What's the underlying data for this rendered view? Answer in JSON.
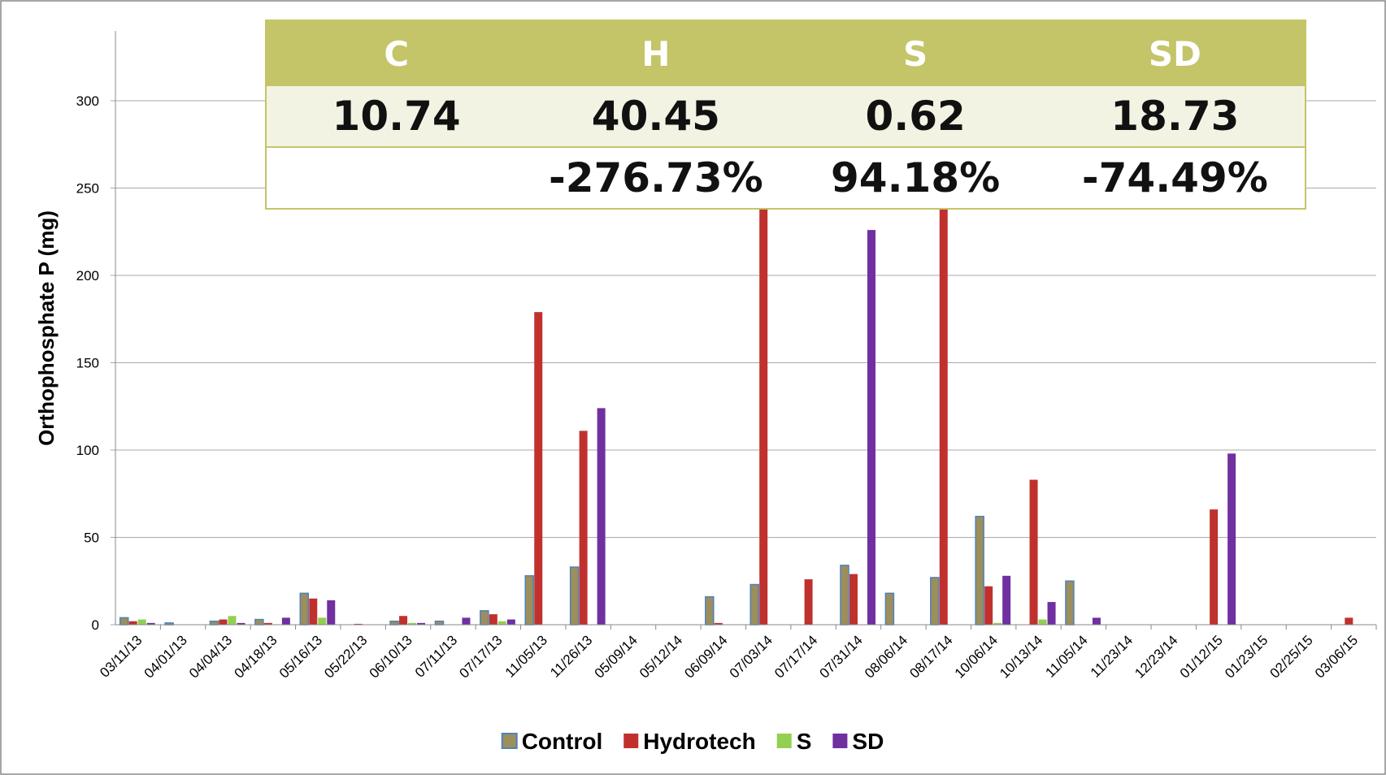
{
  "chart_data": {
    "type": "bar",
    "y_label": "Orthophosphate P (mg)",
    "categories": [
      "03/11/13",
      "04/01/13",
      "04/04/13",
      "04/18/13",
      "05/16/13",
      "05/22/13",
      "06/10/13",
      "07/11/13",
      "07/17/13",
      "11/05/13",
      "11/26/13",
      "05/09/14",
      "05/12/14",
      "06/09/14",
      "07/03/14",
      "07/17/14",
      "07/31/14",
      "08/06/14",
      "08/17/14",
      "10/06/14",
      "10/13/14",
      "11/05/14",
      "11/23/14",
      "12/23/14",
      "01/12/15",
      "01/23/15",
      "02/25/15",
      "03/06/15"
    ],
    "series": [
      {
        "name": "Control",
        "color": "#9c8f5c",
        "values": [
          4,
          1,
          2,
          3,
          18,
          0,
          2,
          2,
          8,
          28,
          33,
          0,
          0,
          16,
          23,
          0,
          34,
          18,
          27,
          62,
          0,
          25,
          0,
          0,
          0,
          0,
          0,
          0
        ]
      },
      {
        "name": "Hydrotech",
        "color": "#c0312d",
        "values": [
          2,
          0,
          3,
          1,
          15,
          0.5,
          5,
          0,
          6,
          179,
          111,
          0,
          0,
          1,
          290,
          26,
          29,
          0,
          280,
          22,
          83,
          0,
          0,
          0,
          66,
          0,
          0,
          4
        ]
      },
      {
        "name": "S",
        "color": "#92d050",
        "values": [
          3,
          0,
          5,
          0,
          4,
          0,
          1,
          0,
          2,
          0,
          0,
          0,
          0,
          0,
          0,
          0,
          0,
          0,
          0,
          1,
          3,
          0,
          0,
          0,
          0,
          0,
          0,
          0
        ]
      },
      {
        "name": "SD",
        "color": "#7030a0",
        "values": [
          1,
          0,
          1,
          4,
          14,
          0,
          1,
          4,
          3,
          0,
          124,
          0,
          0,
          0,
          0,
          0,
          226,
          0,
          0,
          28,
          13,
          4,
          0,
          0,
          98,
          0,
          0,
          0
        ]
      }
    ],
    "ylim": [
      0,
      340
    ],
    "yticks": [
      0,
      50,
      100,
      150,
      200,
      250,
      300
    ],
    "grid": true,
    "legend": "bottom"
  },
  "table": {
    "header": [
      "C",
      "H",
      "S",
      "SD"
    ],
    "rows": [
      [
        "10.74",
        "40.45",
        "0.62",
        "18.73"
      ],
      [
        "-276.73%",
        "94.18%",
        "-74.49%"
      ]
    ]
  }
}
